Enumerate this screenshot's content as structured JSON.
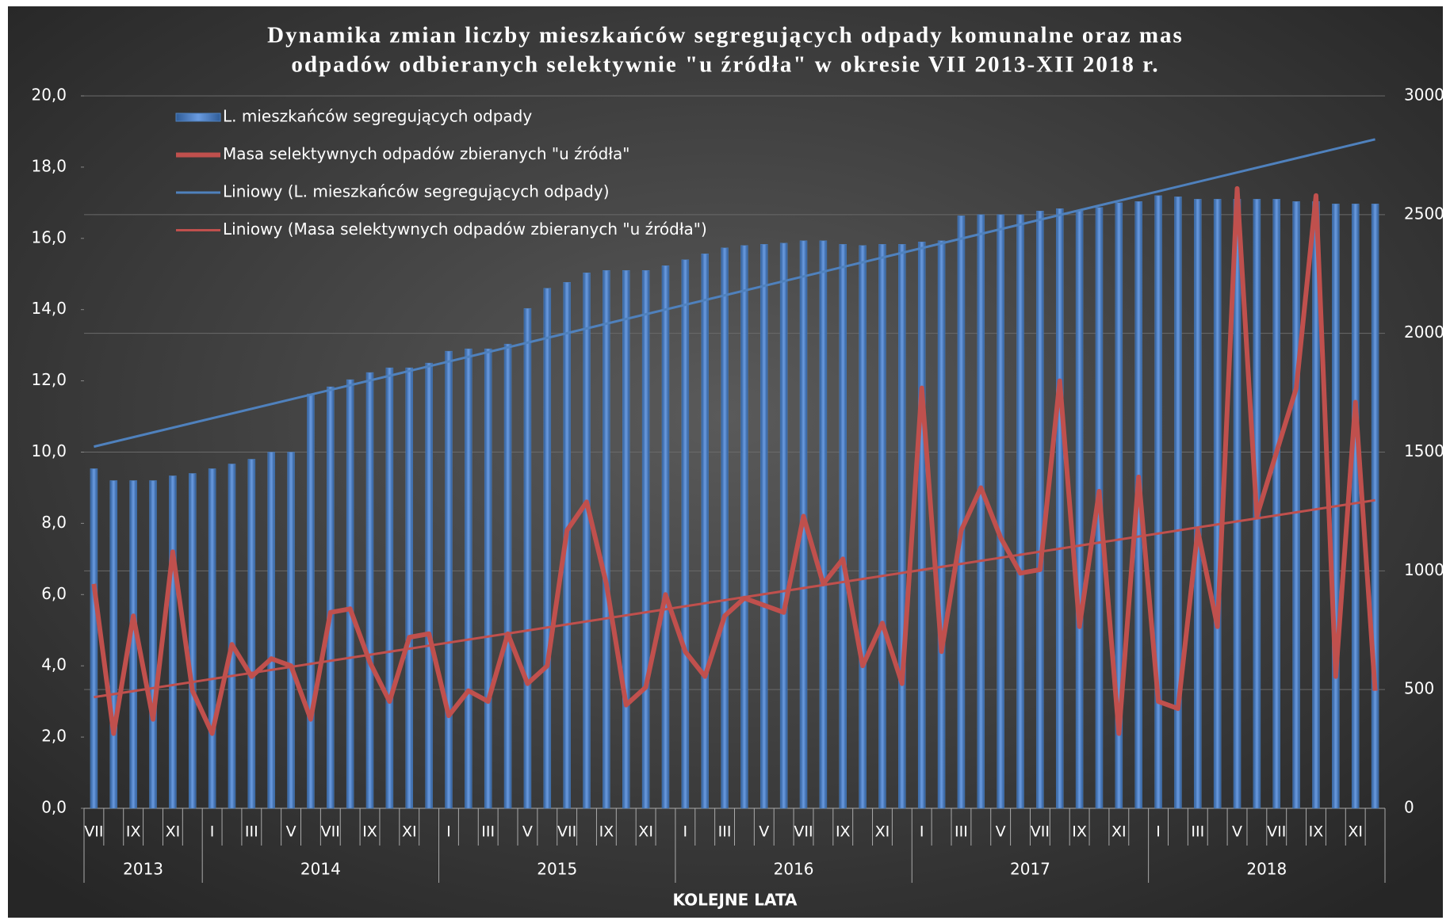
{
  "chart_data": {
    "type": "combo",
    "title": "Dynamika zmian liczby mieszkańców segregujących odpady komunalne oraz mas",
    "subtitle": "odpadów odbieranych selektywnie \"u źródła\" w okresie VII 2013-XII 2018 r.",
    "x_label": "KOLEJNE LATA",
    "groups": [
      {
        "label": "2013",
        "categories": [
          "VII",
          null,
          "IX",
          null,
          "XI",
          null
        ]
      },
      {
        "label": "2014",
        "categories": [
          "I",
          null,
          "III",
          null,
          "V",
          null,
          "VII",
          null,
          "IX",
          null,
          "XI",
          null
        ]
      },
      {
        "label": "2015",
        "categories": [
          "I",
          null,
          "III",
          null,
          "V",
          null,
          "VII",
          null,
          "IX",
          null,
          "XI",
          null
        ]
      },
      {
        "label": "2016",
        "categories": [
          "I",
          null,
          "III",
          null,
          "V",
          null,
          "VII",
          null,
          "IX",
          null,
          "XI",
          null
        ]
      },
      {
        "label": "2017",
        "categories": [
          "I",
          null,
          "III",
          null,
          "V",
          null,
          "VII",
          null,
          "IX",
          null,
          "XI",
          null
        ]
      },
      {
        "label": "2018",
        "categories": [
          "I",
          null,
          "III",
          null,
          "V",
          null,
          "VII",
          null,
          "IX",
          null,
          "XI",
          null
        ]
      }
    ],
    "series": [
      {
        "name": "L. mieszkańców segregujących odpady",
        "type": "bar",
        "axis": "y2",
        "color": "#4f81bd",
        "values": [
          1430,
          1380,
          1380,
          1380,
          1400,
          1410,
          1430,
          1450,
          1470,
          1500,
          1500,
          1745,
          1775,
          1805,
          1835,
          1855,
          1855,
          1875,
          1925,
          1935,
          1935,
          1955,
          2105,
          2190,
          2215,
          2255,
          2265,
          2265,
          2265,
          2285,
          2310,
          2335,
          2360,
          2370,
          2375,
          2380,
          2390,
          2390,
          2375,
          2370,
          2375,
          2375,
          2385,
          2390,
          2495,
          2500,
          2500,
          2500,
          2515,
          2525,
          2515,
          2530,
          2550,
          2555,
          2580,
          2575,
          2565,
          2565,
          2565,
          2565,
          2565,
          2555,
          2555,
          2545,
          2545,
          2545
        ]
      },
      {
        "name": "Masa selektywnych odpadów zbieranych \"u źródła\"",
        "type": "line",
        "axis": "y",
        "color": "#c0504d",
        "values": [
          6.3,
          2.1,
          5.4,
          2.5,
          7.2,
          3.3,
          2.1,
          4.6,
          3.7,
          4.2,
          4.0,
          2.5,
          5.5,
          5.6,
          4.1,
          3.0,
          4.8,
          4.9,
          2.6,
          3.3,
          3.0,
          4.9,
          3.5,
          4.0,
          7.8,
          8.6,
          6.3,
          2.9,
          3.4,
          6.0,
          4.4,
          3.7,
          5.4,
          5.9,
          5.7,
          5.5,
          8.2,
          6.3,
          7.0,
          4.0,
          5.2,
          3.5,
          11.8,
          4.4,
          7.8,
          9.0,
          7.6,
          6.6,
          6.7,
          12.0,
          5.1,
          8.9,
          2.1,
          9.3,
          3.0,
          2.8,
          7.8,
          5.1,
          17.4,
          8.2,
          10.0,
          11.8,
          17.2,
          3.7,
          11.4,
          3.3
        ]
      },
      {
        "name": "Liniowy (L. mieszkańców segregujących odpady)",
        "type": "trend",
        "axis": "y2",
        "color": "#4f81bd",
        "values": [
          1523,
          2817
        ]
      },
      {
        "name": "Liniowy (Masa selektywnych odpadów zbieranych \"u źródła\")",
        "type": "trend",
        "axis": "y",
        "color": "#c0504d",
        "values": [
          3.12,
          8.65
        ]
      }
    ],
    "ylim": [
      0,
      20
    ],
    "yticks": [
      {
        "value": 0,
        "label": "0,0"
      },
      {
        "value": 2,
        "label": "2,0"
      },
      {
        "value": 4,
        "label": "4,0"
      },
      {
        "value": 6,
        "label": "6,0"
      },
      {
        "value": 8,
        "label": "8,0"
      },
      {
        "value": 10,
        "label": "10,0"
      },
      {
        "value": 12,
        "label": "12,0"
      },
      {
        "value": 14,
        "label": "14,0"
      },
      {
        "value": 16,
        "label": "16,0"
      },
      {
        "value": 18,
        "label": "18,0"
      },
      {
        "value": 20,
        "label": "20,0"
      }
    ],
    "y2lim": [
      0,
      3000
    ],
    "y2ticks": [
      0,
      500,
      1000,
      1500,
      2000,
      2500,
      3000
    ],
    "grid": true,
    "legend": "top-left"
  }
}
